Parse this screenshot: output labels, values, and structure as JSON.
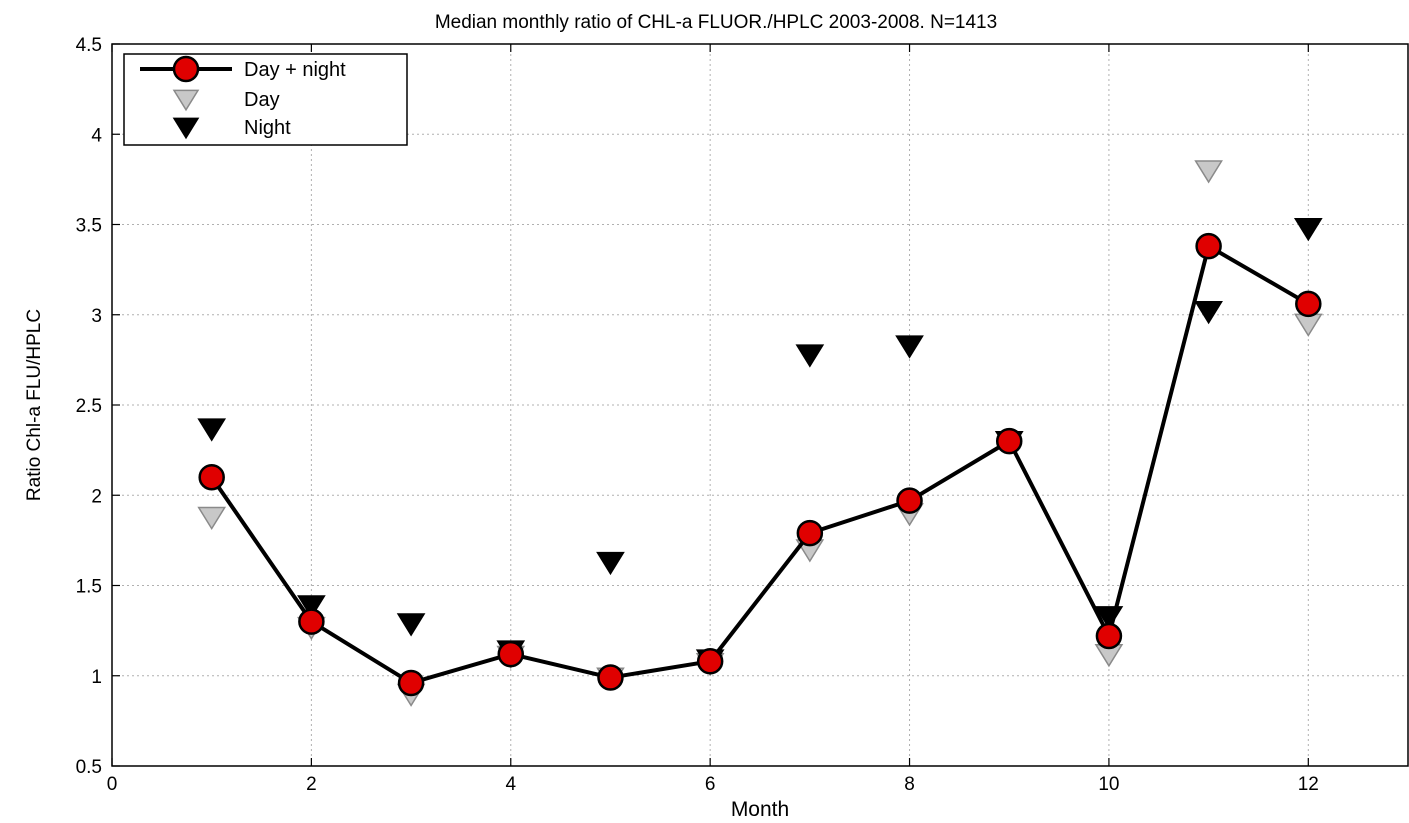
{
  "chart_data": {
    "type": "line",
    "title": "Median monthly ratio of CHL-a FLUOR./HPLC 2003-2008. N=1413",
    "xlabel": "Month",
    "ylabel": "Ratio Chl-a FLU/HPLC",
    "xlim": [
      0,
      13
    ],
    "ylim": [
      0.5,
      4.5
    ],
    "xticks": [
      0,
      2,
      4,
      6,
      8,
      10,
      12
    ],
    "yticks": [
      0.5,
      1,
      1.5,
      2,
      2.5,
      3,
      3.5,
      4,
      4.5
    ],
    "xtick_labels": [
      "0",
      "2",
      "4",
      "6",
      "8",
      "10",
      "12"
    ],
    "ytick_labels": [
      "0.5",
      "1",
      "1.5",
      "2",
      "2.5",
      "3",
      "3.5",
      "4",
      "4.5"
    ],
    "grid": true,
    "legend_position": "top-left",
    "x": [
      1,
      2,
      3,
      4,
      5,
      6,
      7,
      8,
      9,
      10,
      11,
      12
    ],
    "series": [
      {
        "name": "Day + night",
        "marker": "circle",
        "line": true,
        "color": "#e00000",
        "values": [
          2.1,
          1.3,
          0.96,
          1.12,
          0.99,
          1.08,
          1.79,
          1.97,
          2.3,
          1.22,
          3.38,
          3.06
        ]
      },
      {
        "name": "Day",
        "marker": "triangle-down",
        "line": false,
        "color": "#c8c8c8",
        "values": [
          1.88,
          1.27,
          0.9,
          1.11,
          0.99,
          1.07,
          1.7,
          1.9,
          2.3,
          1.12,
          3.8,
          2.95
        ]
      },
      {
        "name": "Night",
        "marker": "triangle-down",
        "line": false,
        "color": "#000000",
        "values": [
          2.37,
          1.39,
          1.29,
          1.14,
          1.63,
          1.09,
          2.78,
          2.83,
          2.3,
          1.33,
          3.02,
          3.48
        ]
      }
    ]
  }
}
